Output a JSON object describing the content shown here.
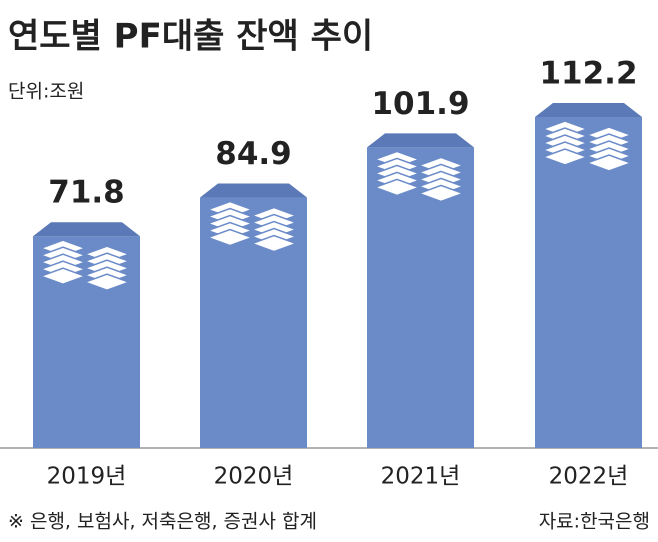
{
  "chart_data": {
    "type": "bar",
    "title": "연도별 PF대출 잔액 추이",
    "unit": "단위:조원",
    "categories": [
      "2019년",
      "2020년",
      "2021년",
      "2022년"
    ],
    "values": [
      71.8,
      84.9,
      101.9,
      112.2
    ],
    "color": "#6b8bc8",
    "footnote": "※ 은행, 보험사, 저축은행, 증권사 합계",
    "source": "자료:한국은행"
  }
}
